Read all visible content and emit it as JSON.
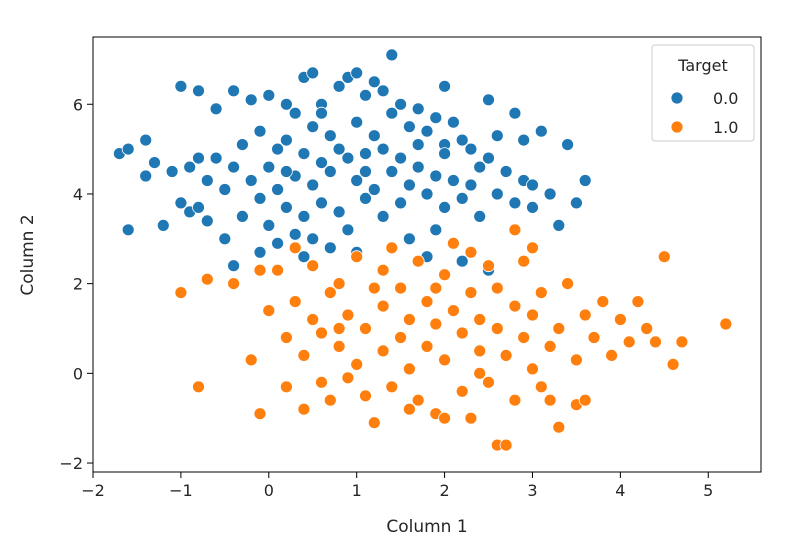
{
  "chart_data": {
    "type": "scatter",
    "xlabel": "Column 1",
    "ylabel": "Column 2",
    "xlim": [
      -2,
      5.6
    ],
    "ylim": [
      -2.2,
      7.5
    ],
    "xticks": [
      -2,
      -1,
      0,
      1,
      2,
      3,
      4,
      5
    ],
    "yticks": [
      -2,
      0,
      2,
      4,
      6
    ],
    "xtick_labels": [
      "−2",
      "−1",
      "0",
      "1",
      "2",
      "3",
      "4",
      "5"
    ],
    "ytick_labels": [
      "−2",
      "0",
      "2",
      "4",
      "6"
    ],
    "grid": false,
    "legend": {
      "title": "Target",
      "placement": "top-right"
    },
    "series": [
      {
        "name": "0.0",
        "color": "#1f77b4",
        "points": [
          [
            -1.7,
            4.9
          ],
          [
            -1.6,
            5.0
          ],
          [
            -1.6,
            3.2
          ],
          [
            -1.4,
            5.2
          ],
          [
            -1.4,
            4.4
          ],
          [
            -1.3,
            4.7
          ],
          [
            -1.2,
            3.3
          ],
          [
            -1.1,
            4.5
          ],
          [
            -1.0,
            6.4
          ],
          [
            -1.0,
            3.8
          ],
          [
            -0.9,
            4.6
          ],
          [
            -0.9,
            3.6
          ],
          [
            -0.8,
            4.8
          ],
          [
            -0.8,
            6.3
          ],
          [
            -0.7,
            4.3
          ],
          [
            -0.7,
            3.4
          ],
          [
            -0.6,
            4.8
          ],
          [
            -0.6,
            5.9
          ],
          [
            -0.5,
            4.1
          ],
          [
            -0.5,
            3.0
          ],
          [
            -0.4,
            6.3
          ],
          [
            -0.4,
            4.6
          ],
          [
            -0.4,
            2.4
          ],
          [
            -0.3,
            5.1
          ],
          [
            -0.3,
            3.5
          ],
          [
            -0.2,
            6.1
          ],
          [
            -0.2,
            4.3
          ],
          [
            -0.1,
            5.4
          ],
          [
            -0.1,
            3.9
          ],
          [
            -0.1,
            2.7
          ],
          [
            0.0,
            6.2
          ],
          [
            0.0,
            4.6
          ],
          [
            0.0,
            3.3
          ],
          [
            0.1,
            5.0
          ],
          [
            0.1,
            4.1
          ],
          [
            0.1,
            2.9
          ],
          [
            0.2,
            6.0
          ],
          [
            0.2,
            5.2
          ],
          [
            0.2,
            3.7
          ],
          [
            0.3,
            5.8
          ],
          [
            0.3,
            4.4
          ],
          [
            0.3,
            3.1
          ],
          [
            0.4,
            6.6
          ],
          [
            0.4,
            4.9
          ],
          [
            0.4,
            3.5
          ],
          [
            0.4,
            2.6
          ],
          [
            0.5,
            6.7
          ],
          [
            0.5,
            5.5
          ],
          [
            0.5,
            4.2
          ],
          [
            0.5,
            3.0
          ],
          [
            0.6,
            6.0
          ],
          [
            0.6,
            4.7
          ],
          [
            0.6,
            3.8
          ],
          [
            0.7,
            5.3
          ],
          [
            0.7,
            4.5
          ],
          [
            0.7,
            2.8
          ],
          [
            0.8,
            6.4
          ],
          [
            0.8,
            5.0
          ],
          [
            0.8,
            3.6
          ],
          [
            0.9,
            6.6
          ],
          [
            0.9,
            4.8
          ],
          [
            0.9,
            3.2
          ],
          [
            1.0,
            6.7
          ],
          [
            1.0,
            5.6
          ],
          [
            1.0,
            4.3
          ],
          [
            1.0,
            2.7
          ],
          [
            1.1,
            6.2
          ],
          [
            1.1,
            4.9
          ],
          [
            1.1,
            3.9
          ],
          [
            1.2,
            6.5
          ],
          [
            1.2,
            5.3
          ],
          [
            1.2,
            4.1
          ],
          [
            1.3,
            6.3
          ],
          [
            1.3,
            5.0
          ],
          [
            1.3,
            3.5
          ],
          [
            1.4,
            7.1
          ],
          [
            1.4,
            5.8
          ],
          [
            1.4,
            4.5
          ],
          [
            1.5,
            6.0
          ],
          [
            1.5,
            4.8
          ],
          [
            1.5,
            3.8
          ],
          [
            1.6,
            5.5
          ],
          [
            1.6,
            4.2
          ],
          [
            1.6,
            3.0
          ],
          [
            1.7,
            5.9
          ],
          [
            1.7,
            4.6
          ],
          [
            1.8,
            5.4
          ],
          [
            1.8,
            4.0
          ],
          [
            1.8,
            2.6
          ],
          [
            1.9,
            5.7
          ],
          [
            1.9,
            4.4
          ],
          [
            1.9,
            3.2
          ],
          [
            2.0,
            6.4
          ],
          [
            2.0,
            5.1
          ],
          [
            2.0,
            3.7
          ],
          [
            2.1,
            5.6
          ],
          [
            2.1,
            4.3
          ],
          [
            2.2,
            5.2
          ],
          [
            2.2,
            3.9
          ],
          [
            2.2,
            2.5
          ],
          [
            2.3,
            5.0
          ],
          [
            2.3,
            4.2
          ],
          [
            2.4,
            4.6
          ],
          [
            2.4,
            3.5
          ],
          [
            2.5,
            6.1
          ],
          [
            2.5,
            4.8
          ],
          [
            2.5,
            2.3
          ],
          [
            2.6,
            5.3
          ],
          [
            2.6,
            4.0
          ],
          [
            2.7,
            4.5
          ],
          [
            2.8,
            5.8
          ],
          [
            2.8,
            3.8
          ],
          [
            2.9,
            5.2
          ],
          [
            2.9,
            4.3
          ],
          [
            3.0,
            3.7
          ],
          [
            3.0,
            4.2
          ],
          [
            3.1,
            5.4
          ],
          [
            3.2,
            4.0
          ],
          [
            3.3,
            3.3
          ],
          [
            3.4,
            5.1
          ],
          [
            3.5,
            3.8
          ],
          [
            3.6,
            4.3
          ],
          [
            -0.8,
            3.7
          ],
          [
            0.6,
            5.8
          ],
          [
            1.7,
            5.1
          ],
          [
            0.2,
            4.5
          ],
          [
            1.1,
            4.5
          ],
          [
            2.0,
            4.9
          ]
        ]
      },
      {
        "name": "1.0",
        "color": "#ff7f0e",
        "points": [
          [
            -1.0,
            1.8
          ],
          [
            -0.8,
            -0.3
          ],
          [
            -0.7,
            2.1
          ],
          [
            -0.4,
            2.0
          ],
          [
            -0.2,
            0.3
          ],
          [
            -0.1,
            -0.9
          ],
          [
            -0.1,
            2.3
          ],
          [
            0.0,
            1.4
          ],
          [
            0.1,
            2.3
          ],
          [
            0.2,
            0.8
          ],
          [
            0.2,
            -0.3
          ],
          [
            0.3,
            1.6
          ],
          [
            0.3,
            2.8
          ],
          [
            0.4,
            0.4
          ],
          [
            0.4,
            -0.8
          ],
          [
            0.5,
            1.2
          ],
          [
            0.5,
            2.4
          ],
          [
            0.6,
            -0.2
          ],
          [
            0.6,
            0.9
          ],
          [
            0.7,
            1.8
          ],
          [
            0.7,
            -0.6
          ],
          [
            0.8,
            0.6
          ],
          [
            0.8,
            2.0
          ],
          [
            0.9,
            -0.1
          ],
          [
            0.9,
            1.3
          ],
          [
            1.0,
            0.2
          ],
          [
            1.0,
            2.6
          ],
          [
            1.1,
            -0.5
          ],
          [
            1.1,
            1.0
          ],
          [
            1.2,
            1.9
          ],
          [
            1.2,
            -1.1
          ],
          [
            1.3,
            0.5
          ],
          [
            1.3,
            1.5
          ],
          [
            1.4,
            2.8
          ],
          [
            1.4,
            -0.3
          ],
          [
            1.5,
            0.8
          ],
          [
            1.5,
            1.9
          ],
          [
            1.6,
            0.1
          ],
          [
            1.6,
            1.2
          ],
          [
            1.7,
            2.5
          ],
          [
            1.7,
            -0.6
          ],
          [
            1.8,
            0.6
          ],
          [
            1.8,
            1.6
          ],
          [
            1.9,
            -0.9
          ],
          [
            1.9,
            1.1
          ],
          [
            2.0,
            2.2
          ],
          [
            2.0,
            0.3
          ],
          [
            2.1,
            1.4
          ],
          [
            2.1,
            2.9
          ],
          [
            2.2,
            -0.4
          ],
          [
            2.2,
            0.9
          ],
          [
            2.3,
            1.8
          ],
          [
            2.3,
            -1.0
          ],
          [
            2.4,
            0.5
          ],
          [
            2.4,
            1.2
          ],
          [
            2.5,
            2.4
          ],
          [
            2.5,
            -0.2
          ],
          [
            2.6,
            1.0
          ],
          [
            2.6,
            1.9
          ],
          [
            2.6,
            -1.6
          ],
          [
            2.7,
            0.4
          ],
          [
            2.7,
            -1.6
          ],
          [
            2.8,
            1.5
          ],
          [
            2.8,
            -0.6
          ],
          [
            2.9,
            0.8
          ],
          [
            2.9,
            2.5
          ],
          [
            3.0,
            0.1
          ],
          [
            3.0,
            1.3
          ],
          [
            3.1,
            -0.3
          ],
          [
            3.1,
            1.8
          ],
          [
            3.2,
            0.6
          ],
          [
            3.3,
            -1.2
          ],
          [
            3.3,
            1.0
          ],
          [
            3.4,
            2.0
          ],
          [
            3.5,
            0.3
          ],
          [
            3.5,
            -0.7
          ],
          [
            3.6,
            1.3
          ],
          [
            3.6,
            -0.6
          ],
          [
            3.7,
            0.8
          ],
          [
            3.8,
            1.6
          ],
          [
            3.9,
            0.4
          ],
          [
            4.0,
            1.2
          ],
          [
            4.1,
            0.7
          ],
          [
            4.2,
            1.6
          ],
          [
            4.3,
            1.0
          ],
          [
            4.4,
            0.7
          ],
          [
            4.5,
            2.6
          ],
          [
            4.6,
            0.2
          ],
          [
            4.7,
            0.7
          ],
          [
            5.2,
            1.1
          ],
          [
            2.8,
            3.2
          ],
          [
            3.0,
            2.8
          ],
          [
            2.3,
            2.7
          ],
          [
            1.9,
            1.9
          ],
          [
            1.6,
            -0.8
          ],
          [
            2.0,
            -1.0
          ],
          [
            1.3,
            2.3
          ],
          [
            2.4,
            0.0
          ],
          [
            3.2,
            -0.6
          ],
          [
            0.8,
            1.0
          ]
        ]
      }
    ]
  }
}
